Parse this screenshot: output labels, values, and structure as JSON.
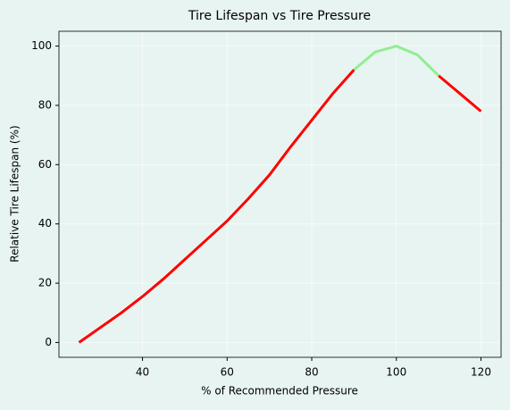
{
  "chart_data": {
    "type": "line",
    "title": "Tire Lifespan vs Tire Pressure",
    "x_label": "% of Recommended Pressure",
    "y_label": "Relative Tire Lifespan (%)",
    "x": [
      25,
      30,
      35,
      40,
      45,
      50,
      55,
      60,
      65,
      70,
      75,
      80,
      85,
      90,
      95,
      100,
      105,
      110,
      115,
      120
    ],
    "series": [
      {
        "color": "#ff0000",
        "values": [
          0,
          5,
          10,
          15.5,
          21.5,
          28,
          34.5,
          41,
          48.5,
          56.5,
          66,
          75,
          84,
          92,
          null,
          null,
          null,
          90,
          84,
          78
        ]
      },
      {
        "color": "#90ee90",
        "values": [
          null,
          null,
          null,
          null,
          null,
          null,
          null,
          null,
          null,
          null,
          null,
          null,
          null,
          92,
          98,
          100,
          97,
          90,
          null,
          null
        ]
      }
    ],
    "xlim": [
      20.25,
      124.75
    ],
    "xticks": [
      40,
      60,
      80,
      100,
      120
    ],
    "ylim": [
      -5,
      105
    ],
    "yticks": [
      0,
      20,
      40,
      60,
      80,
      100
    ],
    "grid": true
  }
}
